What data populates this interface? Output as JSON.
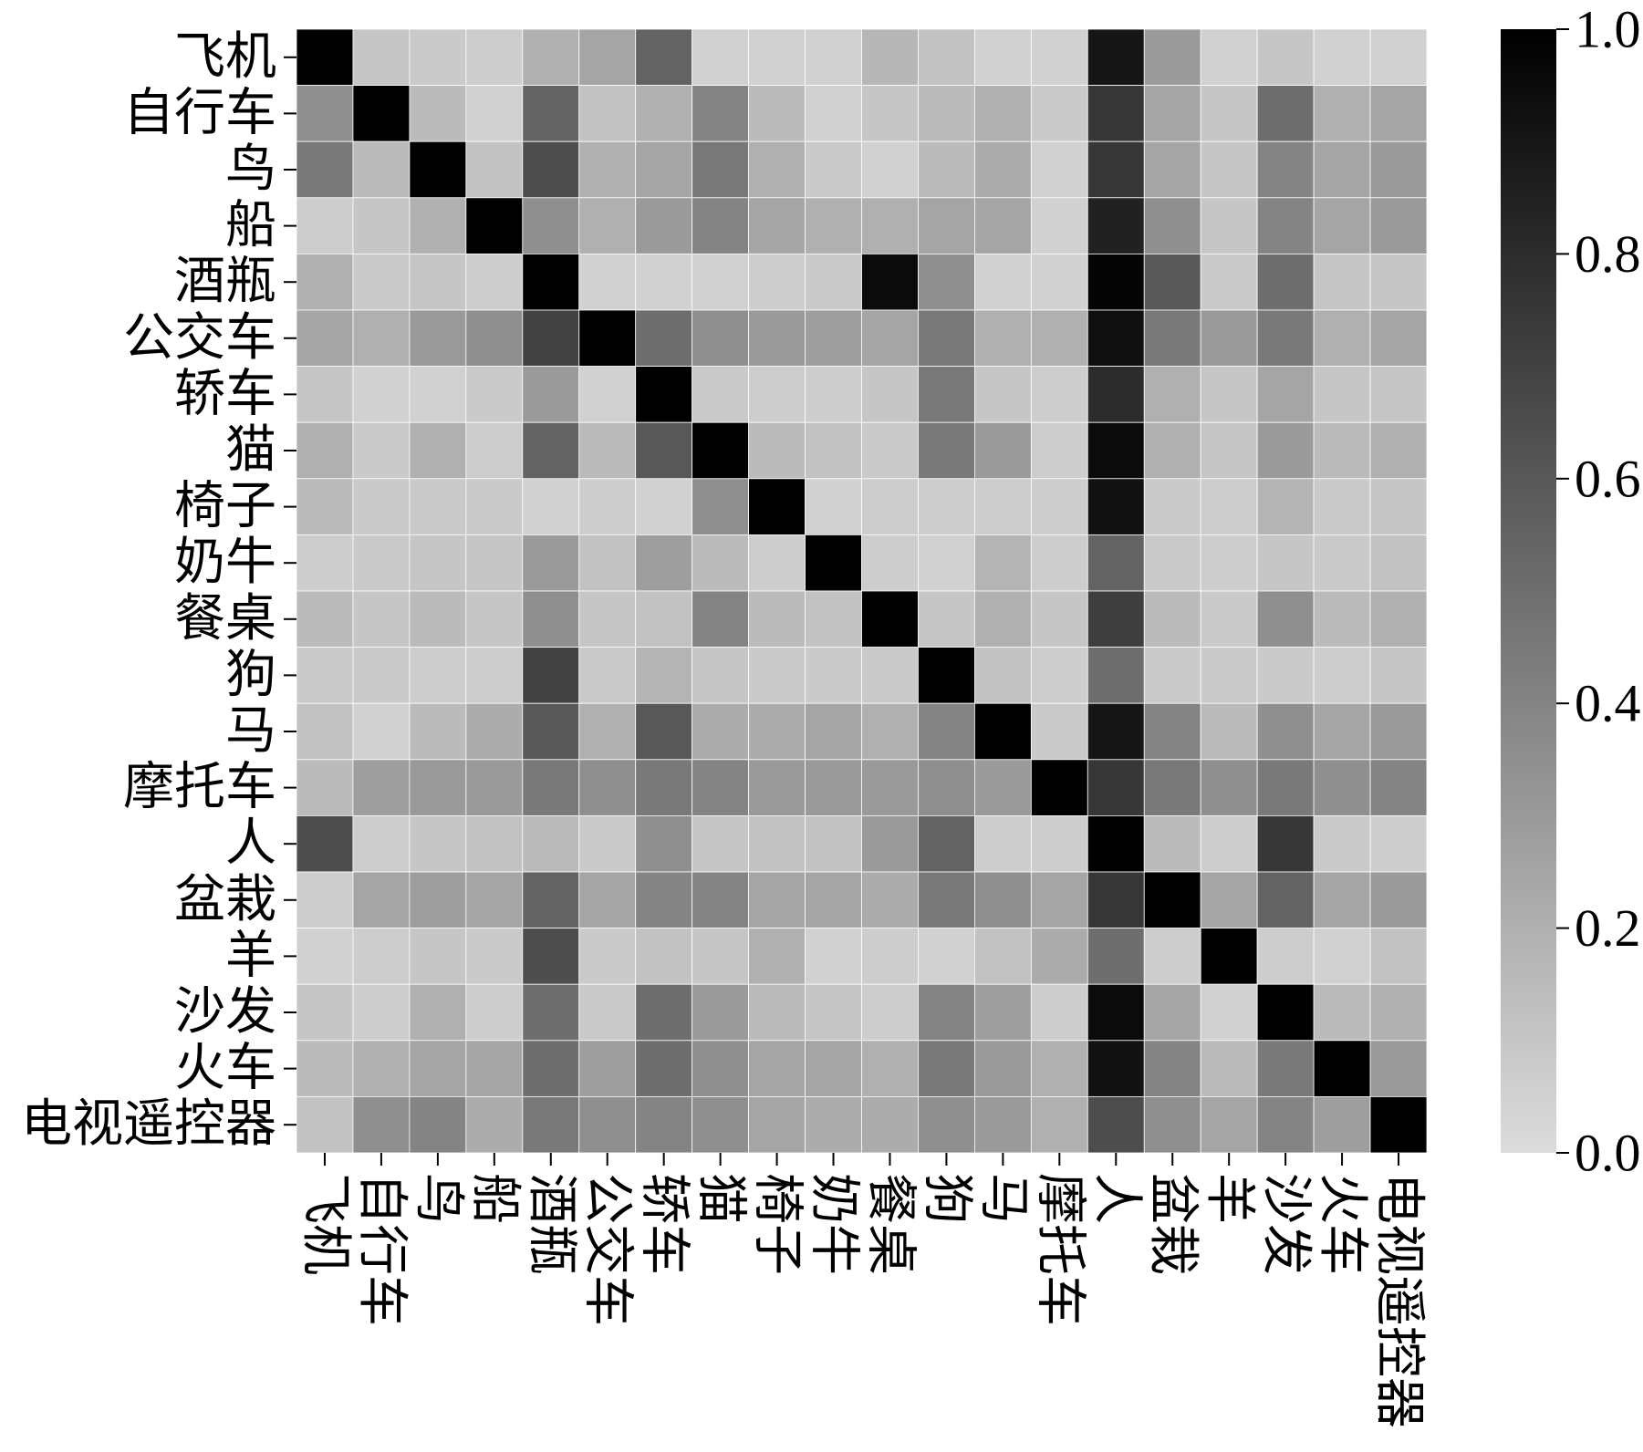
{
  "chart_data": {
    "type": "heatmap",
    "x_categories": [
      "飞机",
      "自行车",
      "鸟",
      "船",
      "酒瓶",
      "公交车",
      "轿车",
      "猫",
      "椅子",
      "奶牛",
      "餐桌",
      "狗",
      "马",
      "摩托车",
      "人",
      "盆栽",
      "羊",
      "沙发",
      "火车",
      "电视遥控器"
    ],
    "y_categories": [
      "飞机",
      "自行车",
      "鸟",
      "船",
      "酒瓶",
      "公交车",
      "轿车",
      "猫",
      "椅子",
      "奶牛",
      "餐桌",
      "狗",
      "马",
      "摩托车",
      "人",
      "盆栽",
      "羊",
      "沙发",
      "火车",
      "电视遥控器"
    ],
    "values": [
      [
        1,
        0.1,
        0.08,
        0.07,
        0.2,
        0.25,
        0.55,
        0.05,
        0.05,
        0.05,
        0.17,
        0.12,
        0.05,
        0.05,
        0.9,
        0.3,
        0.05,
        0.1,
        0.05,
        0.05
      ],
      [
        0.35,
        1,
        0.15,
        0.05,
        0.55,
        0.12,
        0.2,
        0.4,
        0.15,
        0.05,
        0.1,
        0.15,
        0.2,
        0.08,
        0.75,
        0.25,
        0.1,
        0.5,
        0.2,
        0.25
      ],
      [
        0.45,
        0.15,
        1,
        0.12,
        0.65,
        0.2,
        0.25,
        0.45,
        0.2,
        0.08,
        0.05,
        0.15,
        0.22,
        0.05,
        0.75,
        0.25,
        0.1,
        0.4,
        0.25,
        0.3
      ],
      [
        0.07,
        0.1,
        0.2,
        1,
        0.35,
        0.2,
        0.3,
        0.4,
        0.25,
        0.2,
        0.2,
        0.25,
        0.25,
        0.05,
        0.85,
        0.35,
        0.1,
        0.4,
        0.25,
        0.3
      ],
      [
        0.2,
        0.08,
        0.1,
        0.07,
        1,
        0.05,
        0.05,
        0.05,
        0.07,
        0.08,
        0.95,
        0.35,
        0.05,
        0.05,
        0.98,
        0.6,
        0.08,
        0.5,
        0.1,
        0.1
      ],
      [
        0.25,
        0.2,
        0.3,
        0.35,
        0.7,
        1,
        0.5,
        0.35,
        0.3,
        0.28,
        0.25,
        0.45,
        0.2,
        0.2,
        0.93,
        0.45,
        0.3,
        0.45,
        0.2,
        0.25
      ],
      [
        0.1,
        0.05,
        0.05,
        0.08,
        0.3,
        0.05,
        1,
        0.08,
        0.07,
        0.07,
        0.1,
        0.45,
        0.1,
        0.07,
        0.8,
        0.2,
        0.1,
        0.25,
        0.1,
        0.1
      ],
      [
        0.2,
        0.08,
        0.2,
        0.07,
        0.55,
        0.15,
        0.6,
        1,
        0.15,
        0.12,
        0.08,
        0.45,
        0.3,
        0.07,
        0.95,
        0.2,
        0.1,
        0.3,
        0.15,
        0.2
      ],
      [
        0.15,
        0.08,
        0.08,
        0.08,
        0.05,
        0.07,
        0.05,
        0.35,
        1,
        0.05,
        0.07,
        0.07,
        0.07,
        0.07,
        0.92,
        0.08,
        0.07,
        0.18,
        0.08,
        0.1
      ],
      [
        0.07,
        0.08,
        0.1,
        0.1,
        0.3,
        0.12,
        0.28,
        0.15,
        0.07,
        1,
        0.07,
        0.05,
        0.18,
        0.07,
        0.55,
        0.08,
        0.07,
        0.1,
        0.08,
        0.12
      ],
      [
        0.15,
        0.1,
        0.15,
        0.1,
        0.35,
        0.1,
        0.12,
        0.4,
        0.15,
        0.12,
        1,
        0.1,
        0.2,
        0.1,
        0.72,
        0.15,
        0.08,
        0.35,
        0.15,
        0.2
      ],
      [
        0.08,
        0.08,
        0.07,
        0.07,
        0.7,
        0.08,
        0.18,
        0.1,
        0.08,
        0.08,
        0.08,
        1,
        0.12,
        0.07,
        0.5,
        0.08,
        0.08,
        0.08,
        0.07,
        0.1
      ],
      [
        0.12,
        0.05,
        0.15,
        0.22,
        0.6,
        0.2,
        0.6,
        0.22,
        0.22,
        0.25,
        0.2,
        0.4,
        1,
        0.08,
        0.9,
        0.4,
        0.15,
        0.35,
        0.25,
        0.3
      ],
      [
        0.15,
        0.28,
        0.3,
        0.3,
        0.45,
        0.35,
        0.45,
        0.4,
        0.3,
        0.3,
        0.3,
        0.35,
        0.3,
        1,
        0.75,
        0.45,
        0.35,
        0.45,
        0.35,
        0.4
      ],
      [
        0.65,
        0.07,
        0.1,
        0.12,
        0.15,
        0.08,
        0.35,
        0.1,
        0.12,
        0.12,
        0.3,
        0.55,
        0.07,
        0.07,
        1,
        0.15,
        0.07,
        0.75,
        0.08,
        0.07
      ],
      [
        0.07,
        0.25,
        0.28,
        0.25,
        0.55,
        0.25,
        0.4,
        0.4,
        0.25,
        0.25,
        0.22,
        0.45,
        0.35,
        0.25,
        0.75,
        1,
        0.25,
        0.55,
        0.25,
        0.3
      ],
      [
        0.05,
        0.07,
        0.1,
        0.08,
        0.65,
        0.08,
        0.12,
        0.1,
        0.2,
        0.05,
        0.07,
        0.05,
        0.12,
        0.22,
        0.5,
        0.07,
        1,
        0.07,
        0.05,
        0.12
      ],
      [
        0.1,
        0.07,
        0.2,
        0.07,
        0.5,
        0.08,
        0.5,
        0.3,
        0.15,
        0.1,
        0.07,
        0.4,
        0.28,
        0.07,
        0.95,
        0.25,
        0.05,
        1,
        0.15,
        0.2
      ],
      [
        0.15,
        0.2,
        0.25,
        0.25,
        0.5,
        0.28,
        0.5,
        0.35,
        0.25,
        0.25,
        0.2,
        0.45,
        0.3,
        0.2,
        0.92,
        0.4,
        0.15,
        0.45,
        1,
        0.3
      ],
      [
        0.12,
        0.35,
        0.4,
        0.22,
        0.45,
        0.35,
        0.4,
        0.35,
        0.25,
        0.22,
        0.22,
        0.35,
        0.3,
        0.2,
        0.65,
        0.35,
        0.25,
        0.4,
        0.28,
        1
      ]
    ],
    "zlim": [
      0,
      1
    ],
    "zticks": [
      {
        "value": 0,
        "label": "0.0"
      },
      0.2,
      0.4,
      0.6,
      0.8,
      {
        "value": 1,
        "label": "1.0"
      }
    ],
    "cmap": [
      "#dcdcdc",
      "#000000"
    ]
  }
}
